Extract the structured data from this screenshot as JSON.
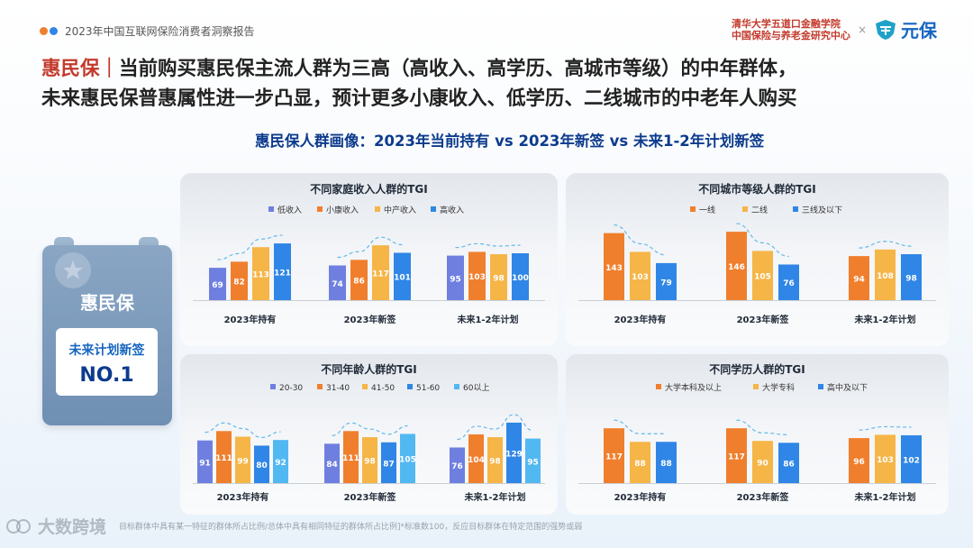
{
  "header": {
    "report_title": "2023年中国互联网保险消费者洞察报告",
    "institution_line1": "清华大学五道口金融学院",
    "institution_line2": "中国保险与养老金研究中心",
    "separator": "×",
    "partner_name": "元保"
  },
  "headline": {
    "brand": "惠民保",
    "divider": "｜",
    "line1": "当前购买惠民保主流人群为三高（高收入、高学历、高城市等级）的中年群体，",
    "line2": "未来惠民保普惠属性进一步凸显，预计更多小康收入、低学历、二线城市的中老年人购买"
  },
  "subtitle": "惠民保人群画像：2023年当前持有 vs 2023年新签 vs 未来1-2年计划新签",
  "left_card": {
    "title": "惠民保",
    "line1": "未来计划新签",
    "line2": "NO.1"
  },
  "footnote": "目标群体中具有某一特征的群体所占比例/总体中具有相同特征的群体所占比例]*标准数100，反应目标群体在特定范围的强势或弱",
  "watermark": "大数跨境",
  "colors": {
    "blue_purple": "#6f7fe0",
    "orange": "#f07f2d",
    "yellow": "#f5b547",
    "blue": "#2f86e6",
    "light_blue": "#52b8f2",
    "dash": "#66b9e8",
    "brand_red": "#c3392b",
    "navy": "#0d3b8c"
  },
  "chart_data": [
    {
      "type": "bar",
      "title": "不同家庭收入人群的TGI",
      "categories": [
        "2023年持有",
        "2023年新签",
        "未来1-2年计划"
      ],
      "series": [
        {
          "name": "低收入",
          "color": "#6f7fe0",
          "values": [
            69,
            74,
            95
          ]
        },
        {
          "name": "小康收入",
          "color": "#f07f2d",
          "values": [
            82,
            86,
            103
          ]
        },
        {
          "name": "中产收入",
          "color": "#f5b547",
          "values": [
            113,
            117,
            98
          ]
        },
        {
          "name": "高收入",
          "color": "#2f86e6",
          "values": [
            121,
            101,
            100
          ]
        }
      ],
      "legend_position": "top"
    },
    {
      "type": "bar",
      "title": "不同城市等级人群的TGI",
      "categories": [
        "2023年持有",
        "2023年新签",
        "未来1-2年计划"
      ],
      "series": [
        {
          "name": "一线",
          "color": "#f07f2d",
          "values": [
            143,
            146,
            94
          ]
        },
        {
          "name": "二线",
          "color": "#f5b547",
          "values": [
            103,
            105,
            108
          ]
        },
        {
          "name": "三线及以下",
          "color": "#2f86e6",
          "values": [
            79,
            76,
            98
          ]
        }
      ],
      "legend_position": "top"
    },
    {
      "type": "bar",
      "title": "不同年龄人群的TGI",
      "categories": [
        "2023年持有",
        "2023年新签",
        "未来1-2年计划"
      ],
      "series": [
        {
          "name": "20-30",
          "color": "#6f7fe0",
          "values": [
            91,
            84,
            76
          ]
        },
        {
          "name": "31-40",
          "color": "#f07f2d",
          "values": [
            111,
            111,
            104
          ]
        },
        {
          "name": "41-50",
          "color": "#f5b547",
          "values": [
            99,
            98,
            98
          ]
        },
        {
          "name": "51-60",
          "color": "#2f86e6",
          "values": [
            80,
            87,
            129
          ]
        },
        {
          "name": "60以上",
          "color": "#52b8f2",
          "values": [
            92,
            105,
            95
          ]
        }
      ],
      "legend_position": "top"
    },
    {
      "type": "bar",
      "title": "不同学历人群的TGI",
      "categories": [
        "2023年持有",
        "2023年新签",
        "未来1-2年计划"
      ],
      "series": [
        {
          "name": "大学本科及以上",
          "color": "#f07f2d",
          "values": [
            117,
            117,
            96
          ]
        },
        {
          "name": "大学专科",
          "color": "#f5b547",
          "values": [
            88,
            90,
            103
          ]
        },
        {
          "name": "高中及以下",
          "color": "#2f86e6",
          "values": [
            88,
            86,
            102
          ]
        }
      ],
      "legend_position": "top"
    }
  ]
}
